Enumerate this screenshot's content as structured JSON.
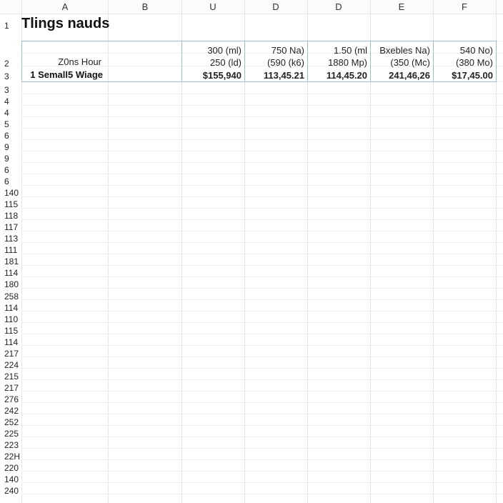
{
  "columns": [
    "A",
    "B",
    "U",
    "D",
    "D",
    "E",
    "F"
  ],
  "row_numbers": [
    "1",
    "2",
    "3",
    "3",
    "4",
    "4",
    "5",
    "6",
    "9",
    "9",
    "6",
    "6",
    "140",
    "115",
    "118",
    "117",
    "113",
    "111",
    "181",
    "114",
    "180",
    "258",
    "114",
    "110",
    "115",
    "114",
    "217",
    "224",
    "215",
    "217",
    "276",
    "242",
    "252",
    "225",
    "223",
    "22H",
    "220",
    "140",
    "240"
  ],
  "sheet": {
    "title": "Tlings nauds",
    "row2_label": "Z0ns Hour",
    "row3_label": "1 Semall5 Wiage",
    "row_a": [
      "300 (ml)",
      "750 Na)",
      "1.50 (ml",
      "Bxebles Na)",
      "540 No)"
    ],
    "row_b": [
      "250 (ld)",
      "(590 (k6)",
      "1880 Mp)",
      "(350 (Mc)",
      "(380 Mo)"
    ],
    "row_c": [
      "$155,940",
      "113,45.21",
      "114,45.20",
      "241,46,26",
      "$17,45.00"
    ]
  }
}
